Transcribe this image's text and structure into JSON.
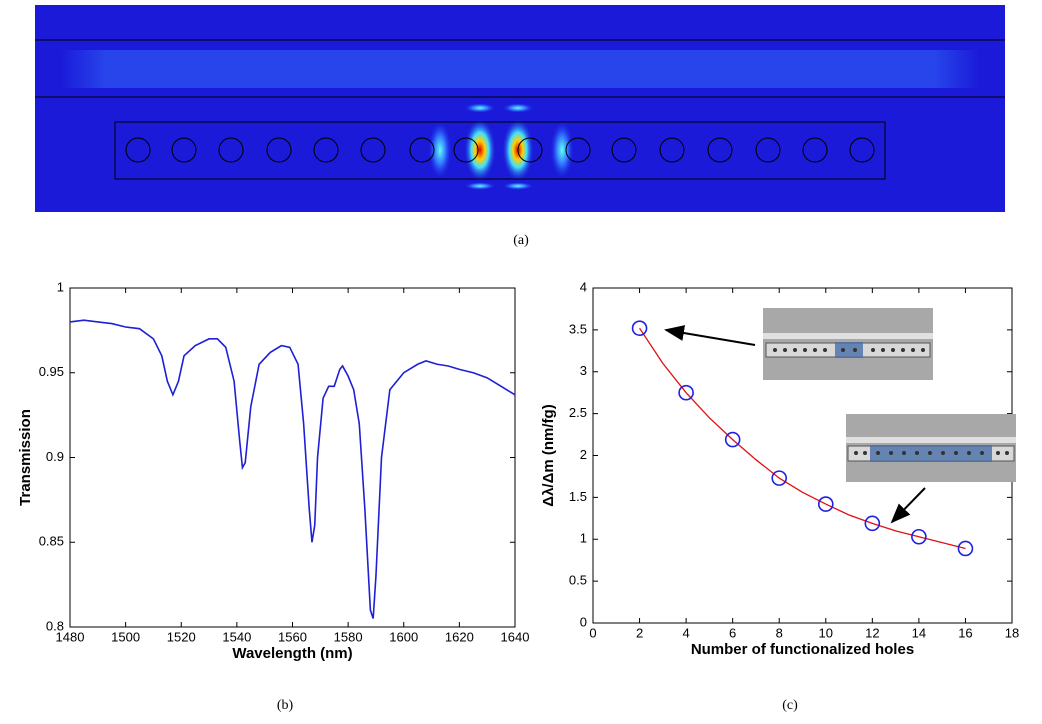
{
  "captions": [
    "(a)",
    "(b)",
    "(c)"
  ],
  "chart_data": [
    {
      "type": "line",
      "xlabel": "Wavelength (nm)",
      "ylabel": "Transmission",
      "x": [
        1480,
        1485,
        1490,
        1495,
        1500,
        1505,
        1510,
        1513,
        1515,
        1517,
        1519,
        1521,
        1525,
        1530,
        1533,
        1536,
        1539,
        1541,
        1542,
        1543,
        1545,
        1548,
        1552,
        1556,
        1559,
        1562,
        1564,
        1566,
        1567,
        1568,
        1569,
        1571,
        1573,
        1575,
        1577,
        1578,
        1580,
        1582,
        1584,
        1586,
        1588,
        1589,
        1590,
        1592,
        1595,
        1600,
        1605,
        1608,
        1612,
        1616,
        1620,
        1625,
        1630,
        1635,
        1640
      ],
      "series": [
        {
          "color": "#1f1fd6",
          "values": [
            0.98,
            0.981,
            0.98,
            0.979,
            0.977,
            0.976,
            0.97,
            0.96,
            0.945,
            0.937,
            0.945,
            0.96,
            0.966,
            0.97,
            0.97,
            0.965,
            0.945,
            0.91,
            0.894,
            0.897,
            0.93,
            0.955,
            0.962,
            0.966,
            0.965,
            0.955,
            0.92,
            0.87,
            0.85,
            0.86,
            0.9,
            0.935,
            0.942,
            0.942,
            0.952,
            0.954,
            0.948,
            0.94,
            0.92,
            0.87,
            0.81,
            0.805,
            0.83,
            0.9,
            0.94,
            0.95,
            0.955,
            0.957,
            0.955,
            0.954,
            0.952,
            0.95,
            0.947,
            0.942,
            0.937
          ]
        }
      ],
      "xlim": [
        1480,
        1640
      ],
      "xticks": [
        1480,
        1500,
        1520,
        1540,
        1560,
        1580,
        1600,
        1620,
        1640
      ],
      "ylim": [
        0.8,
        1
      ],
      "yticks": [
        0.8,
        0.85,
        0.9,
        0.95,
        1
      ]
    },
    {
      "type": "scatter",
      "xlabel": "Number of functionalized holes",
      "ylabel": "Δλ/Δm (nm/fg)",
      "x": [
        2,
        4,
        6,
        8,
        10,
        12,
        14,
        16
      ],
      "series": [
        {
          "color": "#2020e0",
          "values": [
            3.52,
            2.75,
            2.19,
            1.73,
            1.42,
            1.19,
            1.03,
            0.89
          ]
        }
      ],
      "fit": {
        "color": "#e01010",
        "x": [
          2,
          3,
          4,
          5,
          6,
          7,
          8,
          9,
          10,
          11,
          12,
          13,
          14,
          15,
          16
        ],
        "values": [
          3.52,
          3.1,
          2.75,
          2.45,
          2.19,
          1.95,
          1.73,
          1.56,
          1.42,
          1.29,
          1.19,
          1.1,
          1.03,
          0.96,
          0.89
        ]
      },
      "xlim": [
        0,
        18
      ],
      "xticks": [
        0,
        2,
        4,
        6,
        8,
        10,
        12,
        14,
        16,
        18
      ],
      "ylim": [
        0,
        4
      ],
      "yticks": [
        0,
        0.5,
        1,
        1.5,
        2,
        2.5,
        3,
        3.5,
        4
      ]
    }
  ]
}
